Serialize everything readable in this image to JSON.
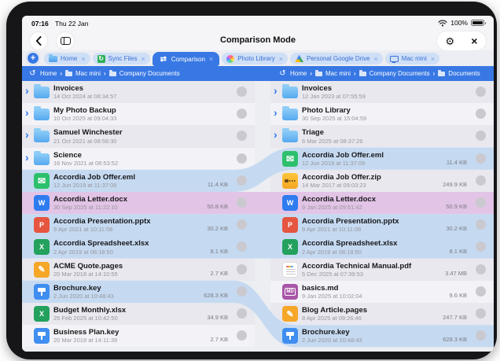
{
  "status_bar": {
    "time": "07:16",
    "date": "Thu 22 Jan",
    "battery": "100%"
  },
  "nav_bar": {
    "title": "Comparison Mode"
  },
  "tab_bar": {
    "add_label": "+",
    "close_label": "×",
    "tabs": [
      {
        "label": "Home",
        "icon": "folder-tab-icon",
        "active": false
      },
      {
        "label": "Sync Files",
        "icon": "sync-icon",
        "active": false
      },
      {
        "label": "Comparison",
        "icon": "compare-arrows-icon",
        "active": true
      },
      {
        "label": "Photo Library",
        "icon": "photos-icon",
        "active": false
      },
      {
        "label": "Personal Google Drive",
        "icon": "google-drive-icon",
        "active": false
      },
      {
        "label": "Mac mini",
        "icon": "display-icon",
        "active": false
      }
    ]
  },
  "breadcrumbs": {
    "left": [
      "Home",
      "Mac mini",
      "Company Documents"
    ],
    "right": [
      "Home",
      "Mac mini",
      "Company Documents",
      "Documents"
    ]
  },
  "left_panel": {
    "rows": [
      {
        "type": "folder",
        "name": "Invoices",
        "date": "14 Oct 2024 at 08:34:57",
        "size": ""
      },
      {
        "type": "folder",
        "name": "My Photo Backup",
        "date": "10 Oct 2025 at 09:04:33",
        "size": ""
      },
      {
        "type": "folder",
        "name": "Samuel Winchester",
        "date": "21 Oct 2021 at 08:58:30",
        "size": ""
      },
      {
        "type": "folder",
        "name": "Science",
        "date": "16 Nov 2021 at 08:53:52",
        "size": ""
      },
      {
        "type": "eml",
        "name": "Accordia Job Offer.eml",
        "date": "12 Jun 2019 at 11:37:09",
        "size": "11.4 KB"
      },
      {
        "type": "docx",
        "name": "Accordia Letter.docx",
        "date": "30 Sep 2025 at 11:22:10",
        "size": "50.8 KB"
      },
      {
        "type": "pptx",
        "name": "Accordia Presentation.pptx",
        "date": "9 Apr 2021 at 10:11:08",
        "size": "30.2 KB"
      },
      {
        "type": "xlsx",
        "name": "Accordia Spreadsheet.xlsx",
        "date": "2 Apr 2019 at 08:18:50",
        "size": "8.1 KB"
      },
      {
        "type": "pages",
        "name": "ACME Quote.pages",
        "date": "20 Mar 2018 at 14:10:55",
        "size": "2.7 KB"
      },
      {
        "type": "key",
        "name": "Brochure.key",
        "date": "2 Jun 2020 at 10:48:43",
        "size": "628.3 KB"
      },
      {
        "type": "xlsx",
        "name": "Budget Monthly.xlsx",
        "date": "25 Feb 2025 at 10:42:50",
        "size": "34.9 KB"
      },
      {
        "type": "key",
        "name": "Business Plan.key",
        "date": "20 Mar 2018 at 14:11:39",
        "size": "2.7 KB"
      }
    ]
  },
  "right_panel": {
    "rows": [
      {
        "type": "folder",
        "name": "Invoices",
        "date": "12 Jan 2023 at 07:55:59",
        "size": ""
      },
      {
        "type": "folder",
        "name": "Photo Library",
        "date": "30 Sep 2025 at 15:04:59",
        "size": ""
      },
      {
        "type": "folder",
        "name": "Triage",
        "date": "6 Mar 2025 at 08:37:26",
        "size": ""
      },
      {
        "type": "eml",
        "name": "Accordia Job Offer.eml",
        "date": "12 Jun 2019 at 11:37:09",
        "size": "11.4 KB"
      },
      {
        "type": "zip",
        "name": "Accordia Job Offer.zip",
        "date": "14 Mar 2017 at 09:03:23",
        "size": "249.9 KB"
      },
      {
        "type": "docx",
        "name": "Accordia Letter.docx",
        "date": "9 Jan 2025 at 09:51:42",
        "size": "50.9 KB"
      },
      {
        "type": "pptx",
        "name": "Accordia Presentation.pptx",
        "date": "9 Apr 2021 at 10:11:08",
        "size": "30.2 KB"
      },
      {
        "type": "xlsx",
        "name": "Accordia Spreadsheet.xlsx",
        "date": "2 Apr 2019 at 08:18:50",
        "size": "8.1 KB"
      },
      {
        "type": "pdf",
        "name": "Accordia Technical Manual.pdf",
        "date": "5 Dec 2025 at 07:39:53",
        "size": "3.47 MB"
      },
      {
        "type": "md",
        "name": "basics.md",
        "date": "9 Jan 2025 at 10:02:04",
        "size": "9.6 KB"
      },
      {
        "type": "pages",
        "name": "Blog Article.pages",
        "date": "8 Apr 2025 at 09:26:46",
        "size": "247.7 KB"
      },
      {
        "type": "key",
        "name": "Brochure.key",
        "date": "2 Jun 2020 at 10:48:43",
        "size": "628.3 KB"
      }
    ]
  },
  "links": [
    {
      "left_index": 4,
      "right_index": 3,
      "color": "blue"
    },
    {
      "left_index": 5,
      "right_index": 5,
      "color": "pink"
    },
    {
      "left_index": 6,
      "right_index": 6,
      "color": "blue"
    },
    {
      "left_index": 7,
      "right_index": 7,
      "color": "blue"
    },
    {
      "left_index": 9,
      "right_index": 11,
      "color": "blue"
    }
  ],
  "colors": {
    "accent_blue": "#3878e4",
    "link_blue": "#c5daf1",
    "link_pink": "#e2c4e6",
    "row_alt_a": "#e8e8ee",
    "row_alt_b": "#f3f3f7"
  },
  "glyphs": {
    "sync": "↻",
    "compare": "⇄",
    "history": "↺",
    "gear": "⚙",
    "close": "×",
    "crumb_sep": "›",
    "chevron": "›"
  }
}
